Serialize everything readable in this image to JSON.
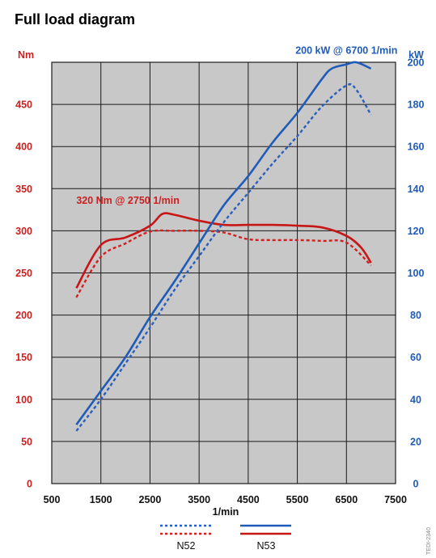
{
  "title": "Full load diagram",
  "colors": {
    "n52_torque": "#d42020",
    "n53_torque": "#c81616",
    "n52_power": "#2a5fc0",
    "n53_power": "#1f5bb8",
    "plot_bg": "#c8c8c8",
    "grid": "#1a1a1a",
    "torque_axis": "#cc1f1f",
    "power_axis": "#1f5bb8"
  },
  "chart_data": {
    "type": "line",
    "title": "Full load diagram",
    "xlabel": "1/min",
    "y_left_label": "Nm",
    "y_right_label": "kW",
    "xlim": [
      500,
      7500
    ],
    "ylim_left": [
      0,
      500
    ],
    "ylim_right": [
      0,
      200
    ],
    "x_ticks": [
      "500",
      "1500",
      "2500",
      "3500",
      "4500",
      "5500",
      "6500",
      "7500"
    ],
    "x_tick_values": [
      500,
      1500,
      2500,
      3500,
      4500,
      5500,
      6500,
      7500
    ],
    "y_left_ticks": [
      "0",
      "50",
      "100",
      "150",
      "200",
      "250",
      "300",
      "350",
      "400",
      "450"
    ],
    "y_left_tick_values": [
      0,
      50,
      100,
      150,
      200,
      250,
      300,
      350,
      400,
      450
    ],
    "y_right_ticks": [
      "0",
      "20",
      "40",
      "60",
      "80",
      "100",
      "120",
      "140",
      "160",
      "180",
      "200"
    ],
    "y_right_tick_values": [
      0,
      20,
      40,
      60,
      80,
      100,
      120,
      140,
      160,
      180,
      200
    ],
    "grid": true,
    "legend_position": "bottom-center",
    "annotations": [
      {
        "text": "200 kW @ 6700 1/min",
        "x": 6500,
        "y_right": 204,
        "anchor": "middle",
        "color_key": "power_axis"
      },
      {
        "text": "320 Nm @ 2750 1/min",
        "x": 2050,
        "y_left": 332,
        "anchor": "middle",
        "color_key": "torque_axis"
      }
    ],
    "series": [
      {
        "name": "N53",
        "quantity": "torque",
        "axis": "left",
        "style": "solid",
        "x": [
          1000,
          1500,
          2000,
          2500,
          2750,
          3000,
          3500,
          4000,
          4500,
          5000,
          5500,
          6000,
          6500,
          6800,
          7000
        ],
        "y": [
          232,
          283,
          292,
          306,
          320,
          319,
          312,
          307,
          307,
          307,
          306,
          304,
          294,
          280,
          262
        ]
      },
      {
        "name": "N52",
        "quantity": "torque",
        "axis": "left",
        "style": "dashed",
        "x": [
          1000,
          1500,
          2000,
          2500,
          3000,
          3500,
          4000,
          4500,
          5000,
          5500,
          6000,
          6500,
          7000
        ],
        "y": [
          221,
          269,
          285,
          299,
          300,
          300,
          298,
          290,
          289,
          289,
          288,
          286,
          259
        ]
      },
      {
        "name": "N53",
        "quantity": "power",
        "axis": "right",
        "style": "solid",
        "x": [
          1000,
          1500,
          2000,
          2500,
          3000,
          3500,
          4000,
          4500,
          5000,
          5500,
          6000,
          6200,
          6500,
          6700,
          7000
        ],
        "y": [
          28,
          44,
          60,
          79,
          96,
          114,
          132,
          146,
          162,
          176,
          192,
          197,
          199,
          200,
          197
        ]
      },
      {
        "name": "N52",
        "quantity": "power",
        "axis": "right",
        "style": "dashed",
        "x": [
          1000,
          1500,
          2000,
          2500,
          3000,
          3500,
          4000,
          4500,
          5000,
          5500,
          6000,
          6500,
          6700,
          7000
        ],
        "y": [
          25,
          40,
          57,
          74,
          92,
          108,
          124,
          138,
          152,
          165,
          179,
          189,
          187,
          175
        ]
      }
    ]
  },
  "legend": {
    "n52": "N52",
    "n53": "N53"
  },
  "image_code": "TEDI-2340"
}
